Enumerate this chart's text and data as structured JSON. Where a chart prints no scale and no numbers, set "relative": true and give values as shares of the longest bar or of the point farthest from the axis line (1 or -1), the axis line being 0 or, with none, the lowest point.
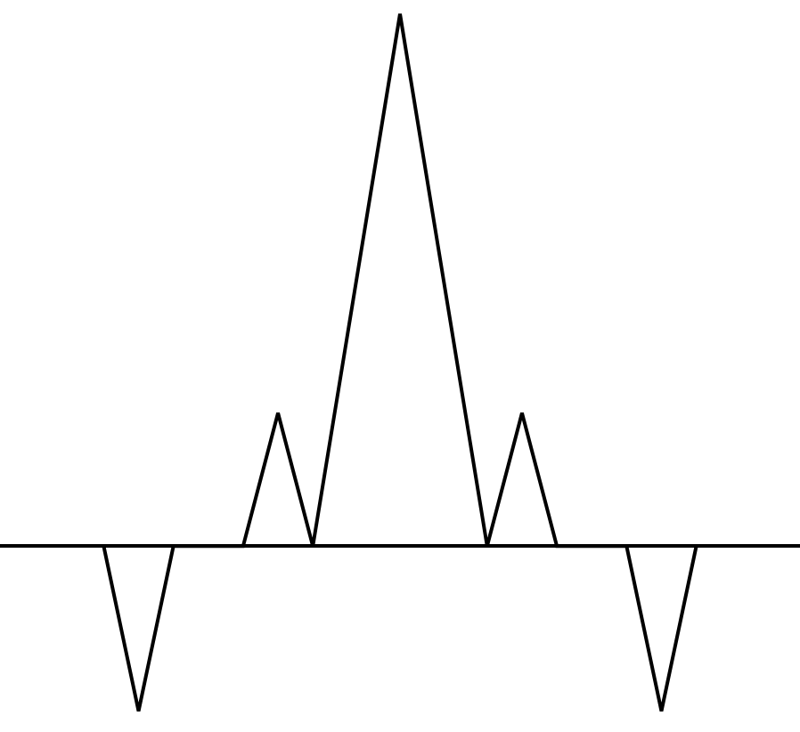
{
  "chart_data": {
    "type": "line",
    "relative": true,
    "grid": false,
    "marker": "none",
    "line_style": "solid",
    "categories": [
      null,
      null,
      null,
      null,
      null,
      null,
      null,
      null,
      null,
      null,
      null,
      null,
      null,
      null,
      null,
      null,
      null,
      null,
      null,
      null,
      null,
      null,
      null,
      null,
      null,
      null,
      null,
      null,
      null,
      null,
      null,
      null,
      null,
      null,
      null
    ],
    "series": [
      {
        "color": "#000000",
        "values": [
          0,
          -0.155,
          -0.31,
          -0.155,
          0,
          0,
          0,
          0,
          0,
          0.125,
          0.25,
          0.125,
          0,
          0.2,
          0.4,
          0.6,
          0.8,
          1,
          0.8,
          0.6,
          0.4,
          0.2,
          0,
          0.125,
          0.25,
          0.125,
          0,
          0,
          0,
          0,
          0,
          -0.155,
          -0.31,
          -0.155,
          0
        ]
      }
    ]
  }
}
